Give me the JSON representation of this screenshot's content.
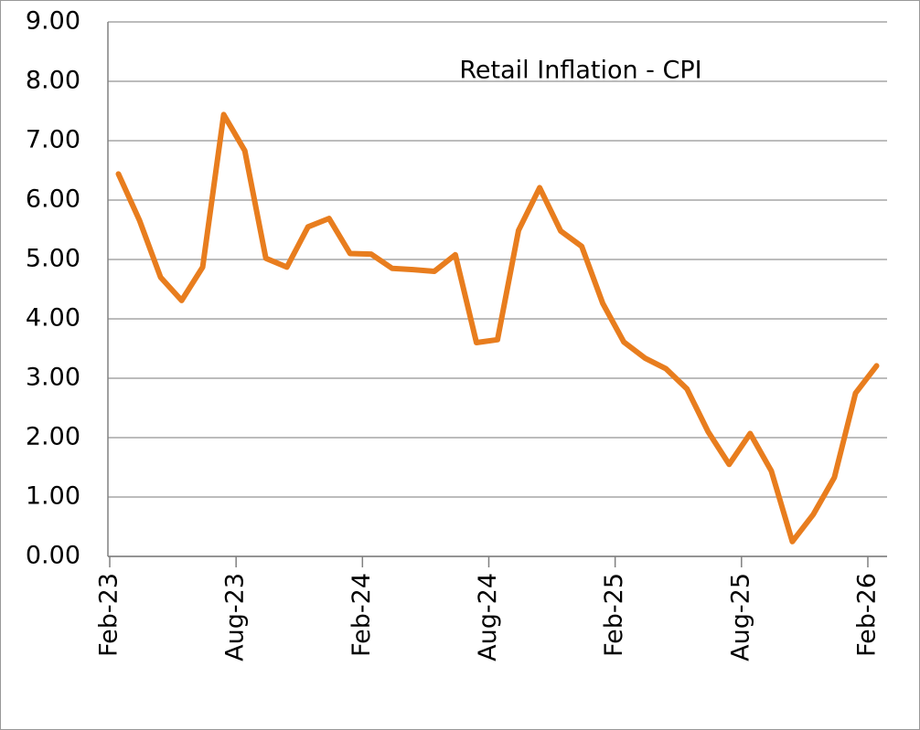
{
  "chart_data": {
    "type": "line",
    "title": "Retail Inflation - CPI",
    "categories": [
      "Feb-23",
      null,
      null,
      null,
      null,
      null,
      "Aug-23",
      null,
      null,
      null,
      null,
      null,
      "Feb-24",
      null,
      null,
      null,
      null,
      null,
      "Aug-24",
      null,
      null,
      null,
      null,
      null,
      "Feb-25",
      null,
      null,
      null,
      null,
      null,
      "Aug-25",
      null,
      null,
      null,
      null,
      null,
      "Feb-26"
    ],
    "series": [
      {
        "name": "Retail Inflation - CPI",
        "color": "#e87d1e",
        "values": [
          6.44,
          5.66,
          4.7,
          4.31,
          4.87,
          7.44,
          6.83,
          5.02,
          4.87,
          5.55,
          5.69,
          5.1,
          5.09,
          4.85,
          4.83,
          4.8,
          5.08,
          3.6,
          3.65,
          5.49,
          6.21,
          5.48,
          5.22,
          4.26,
          3.61,
          3.34,
          3.16,
          2.82,
          2.1,
          1.55,
          2.07,
          1.44,
          0.25,
          0.71,
          1.33,
          2.75,
          3.21
        ]
      }
    ],
    "ylim": [
      0,
      9
    ],
    "yticks": [
      {
        "value": 0,
        "label": "0.00"
      },
      {
        "value": 1,
        "label": "1.00"
      },
      {
        "value": 2,
        "label": "2.00"
      },
      {
        "value": 3,
        "label": "3.00"
      },
      {
        "value": 4,
        "label": "4.00"
      },
      {
        "value": 5,
        "label": "5.00"
      },
      {
        "value": 6,
        "label": "6.00"
      },
      {
        "value": 7,
        "label": "7.00"
      },
      {
        "value": 8,
        "label": "8.00"
      },
      {
        "value": 9,
        "label": "9.00"
      }
    ],
    "grid": true
  }
}
